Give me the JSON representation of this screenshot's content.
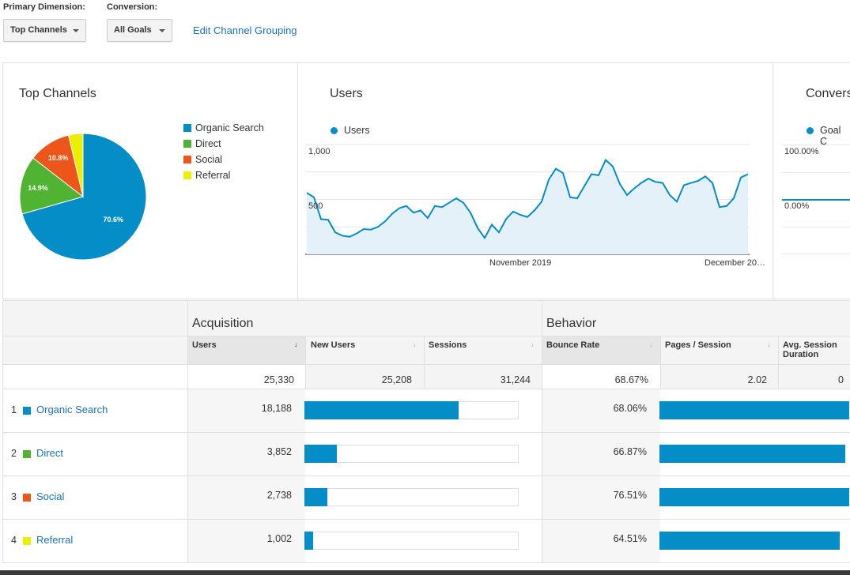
{
  "controls": {
    "primary_dimension_label": "Primary Dimension:",
    "primary_dimension_value": "Top Channels",
    "conversion_label": "Conversion:",
    "conversion_value": "All Goals",
    "edit_link": "Edit Channel Grouping"
  },
  "pie": {
    "title": "Top Channels",
    "legend": [
      "Organic Search",
      "Direct",
      "Social",
      "Referral"
    ],
    "slices": [
      {
        "label": "70.6%",
        "value": 70.6,
        "color": "#058dc7"
      },
      {
        "label": "14.9%",
        "value": 14.9,
        "color": "#50b432"
      },
      {
        "label": "10.8%",
        "value": 10.8,
        "color": "#ed561b"
      },
      {
        "label": "",
        "value": 3.7,
        "color": "#edef00"
      }
    ]
  },
  "users_panel": {
    "title": "Users",
    "legend": "Users",
    "y_labels": [
      "1,000",
      "500"
    ],
    "x_labels": [
      "November 2019",
      "December 20…"
    ]
  },
  "conversions_panel": {
    "title": "Convers",
    "legend": "Goal C",
    "y_labels": [
      "100.00%",
      "0.00%"
    ]
  },
  "chart_data": {
    "type": "area",
    "ylabel": "",
    "ylim": [
      0,
      1000
    ],
    "x_labels": [
      "November 2019",
      "December 20…"
    ],
    "values": [
      560,
      520,
      320,
      315,
      200,
      170,
      160,
      190,
      230,
      225,
      250,
      300,
      370,
      420,
      440,
      380,
      400,
      330,
      440,
      430,
      470,
      510,
      470,
      380,
      240,
      150,
      270,
      200,
      320,
      390,
      360,
      340,
      400,
      480,
      680,
      780,
      740,
      520,
      510,
      620,
      730,
      720,
      860,
      800,
      640,
      540,
      600,
      650,
      690,
      660,
      650,
      540,
      480,
      630,
      650,
      670,
      710,
      650,
      430,
      440,
      510,
      700,
      730
    ]
  },
  "table": {
    "group_acquisition": "Acquisition",
    "group_behavior": "Behavior",
    "headers": [
      "Users",
      "New Users",
      "Sessions",
      "Bounce Rate",
      "Pages / Session",
      "Avg. Session",
      "Duration"
    ],
    "sort_arrow": "↓",
    "sort_arrow_inactive": "↓",
    "totals": [
      "25,330",
      "25,208",
      "31,244",
      "68.67%",
      "2.02",
      "0"
    ],
    "rows": [
      {
        "idx": "1",
        "name": "Organic Search",
        "color": "#058dc7",
        "users": "18,188",
        "new_users_share": 71.8,
        "bounce": "68.06%",
        "pages_share": 100
      },
      {
        "idx": "2",
        "name": "Direct",
        "color": "#50b432",
        "users": "3,852",
        "new_users_share": 15.2,
        "bounce": "66.87%",
        "pages_share": 98
      },
      {
        "idx": "3",
        "name": "Social",
        "color": "#ed561b",
        "users": "2,738",
        "new_users_share": 10.6,
        "bounce": "76.51%",
        "pages_share": 100
      },
      {
        "idx": "4",
        "name": "Referral",
        "color": "#edef00",
        "users": "1,002",
        "new_users_share": 4.2,
        "bounce": "64.51%",
        "pages_share": 95
      }
    ]
  }
}
